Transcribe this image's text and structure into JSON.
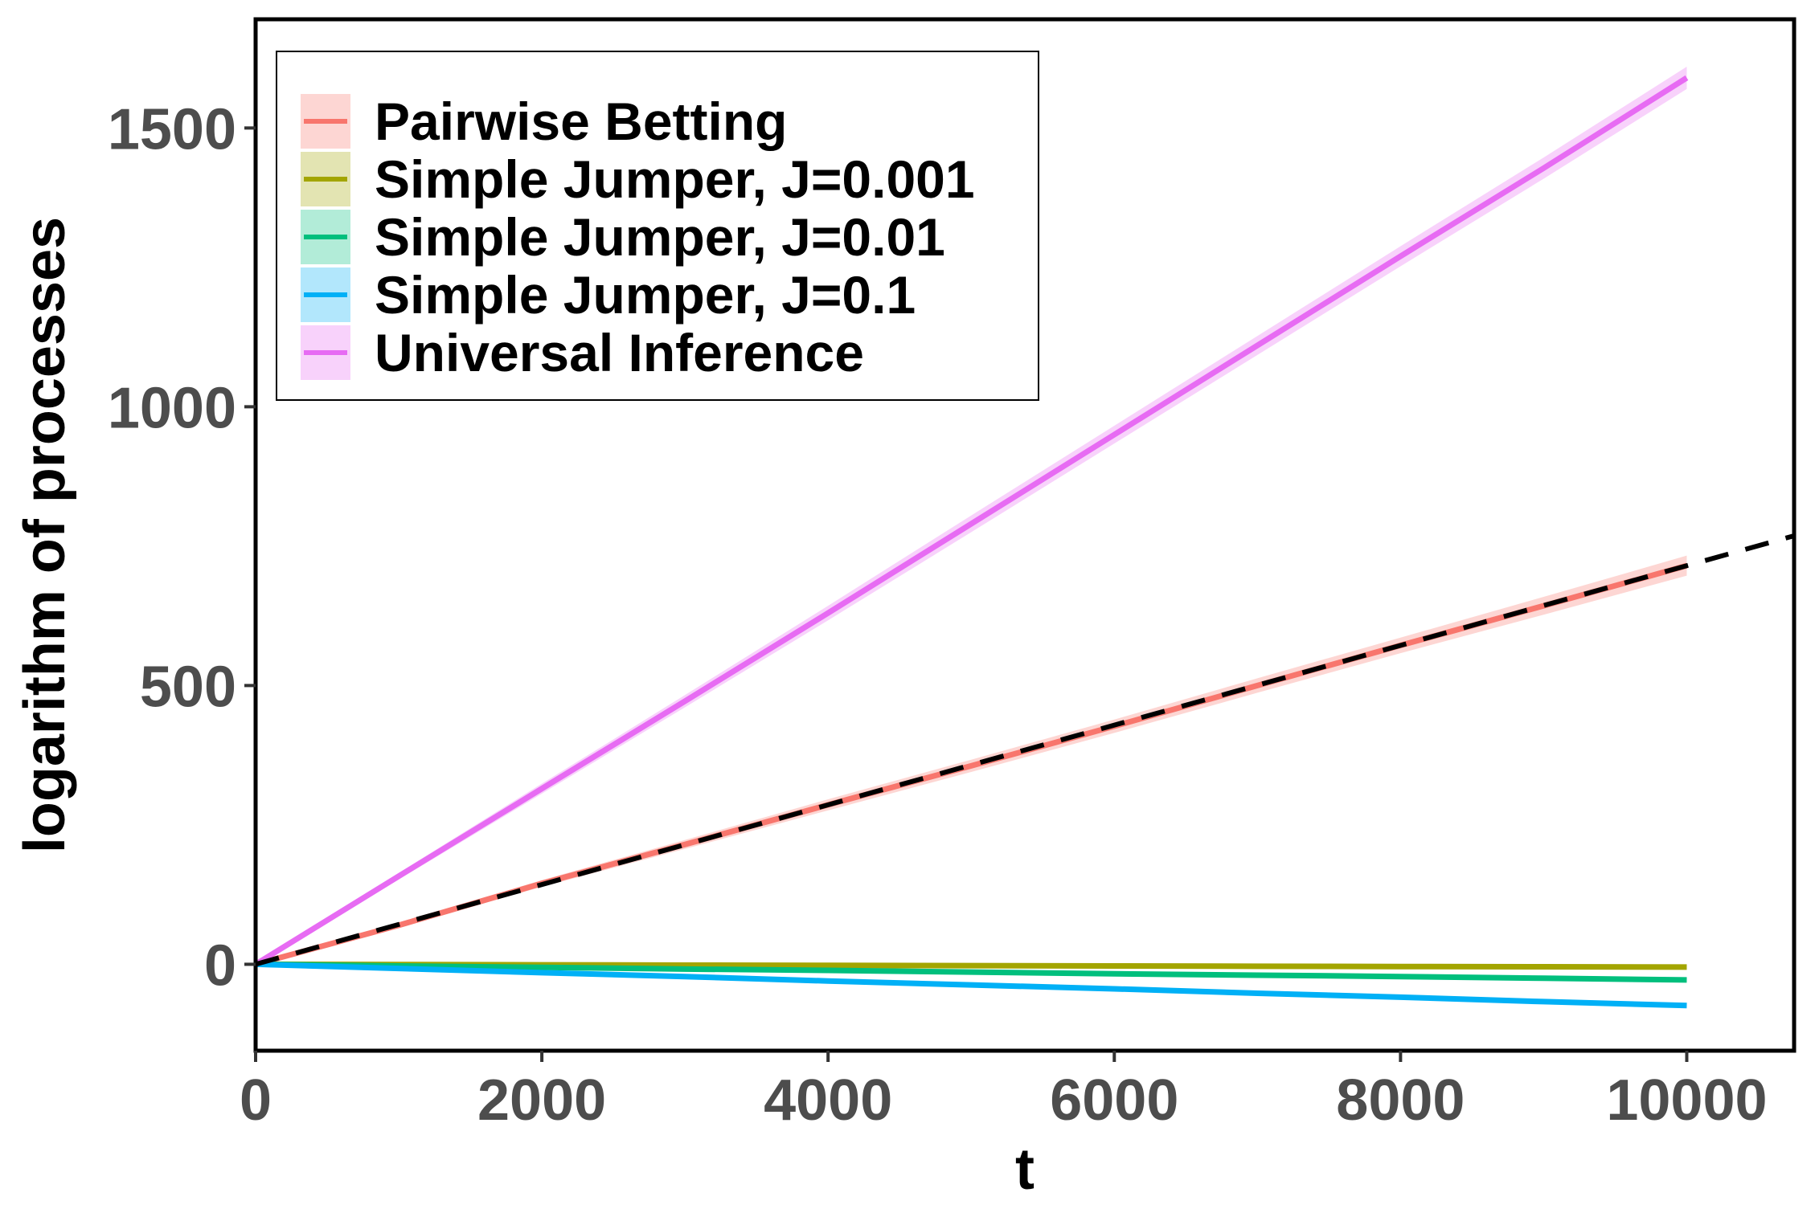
{
  "chart_data": {
    "type": "line",
    "title": "",
    "xlabel": "t",
    "ylabel": "logarithm of processes",
    "xlim": [
      0,
      10750
    ],
    "ylim": [
      -155,
      1695
    ],
    "x_ticks": [
      0,
      2000,
      4000,
      6000,
      8000,
      10000
    ],
    "y_ticks": [
      0,
      500,
      1000,
      1500
    ],
    "x_tick_labels": [
      "0",
      "2000",
      "4000",
      "6000",
      "8000",
      "10000"
    ],
    "y_tick_labels": [
      "0",
      "500",
      "1000",
      "1500"
    ],
    "grid": false,
    "legend_position": "top-left",
    "x": [
      0,
      1000,
      2000,
      3000,
      4000,
      5000,
      6000,
      7000,
      8000,
      9000,
      10000
    ],
    "series": [
      {
        "name": "Pairwise Betting",
        "color": "#F8766D",
        "band_color": "#F8766D",
        "values": [
          0,
          70,
          145,
          215,
          286,
          356,
          427,
          500,
          572,
          643,
          715
        ],
        "band_halfwidth": [
          0,
          4,
          6,
          8,
          10,
          11,
          12,
          13,
          14,
          16,
          18
        ]
      },
      {
        "name": "Simple Jumper, J=0.001",
        "color": "#A3A500",
        "band_color": "#A3A500",
        "values": [
          0,
          -0.5,
          -1,
          -1.5,
          -2,
          -2.5,
          -3,
          -3.5,
          -4,
          -4.5,
          -5
        ],
        "band_halfwidth": [
          0,
          0,
          0,
          0,
          0,
          0,
          0,
          0,
          0,
          0,
          0
        ]
      },
      {
        "name": "Simple Jumper, J=0.01",
        "color": "#00BF7D",
        "band_color": "#00BF7D",
        "values": [
          0,
          -3,
          -5.5,
          -8.5,
          -11,
          -14,
          -17,
          -19.5,
          -22,
          -25,
          -28
        ],
        "band_halfwidth": [
          0,
          0,
          0,
          0,
          0,
          0,
          0,
          0,
          0,
          0,
          0
        ]
      },
      {
        "name": "Simple Jumper, J=0.1",
        "color": "#00B0F6",
        "band_color": "#00B0F6",
        "values": [
          0,
          -7.5,
          -15,
          -22,
          -30,
          -37,
          -44,
          -52,
          -59,
          -67,
          -74
        ],
        "band_halfwidth": [
          0,
          0,
          0,
          0,
          0,
          0,
          0,
          0,
          0,
          0,
          0
        ]
      },
      {
        "name": "Universal Inference",
        "color": "#E76BF3",
        "band_color": "#E76BF3",
        "values": [
          0,
          158,
          315,
          472,
          630,
          790,
          950,
          1110,
          1270,
          1428,
          1590
        ],
        "band_halfwidth": [
          0,
          6,
          9,
          11,
          13,
          15,
          16,
          17,
          18,
          19,
          20
        ]
      }
    ],
    "reference_line": {
      "style": "dashed",
      "color": "#000000",
      "slope": 0.0715,
      "x_range": [
        0,
        10750
      ]
    }
  }
}
